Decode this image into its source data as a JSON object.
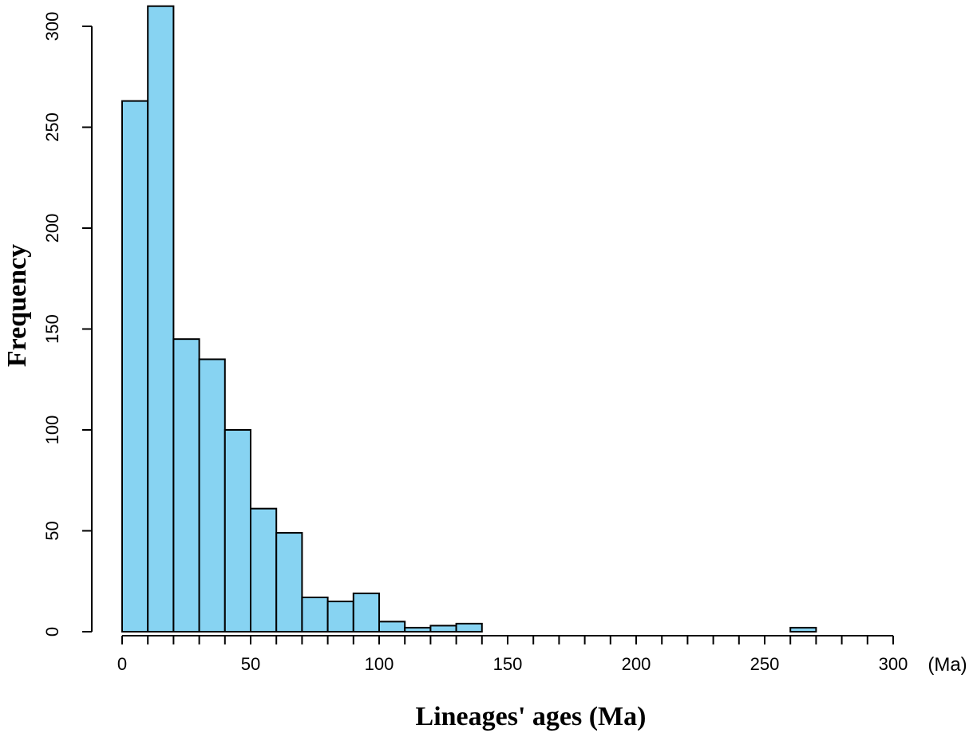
{
  "chart_data": {
    "type": "bar",
    "xlabel": "Lineages' ages (Ma)",
    "ylabel": "Frequency",
    "x_unit_label": "(Ma)",
    "bin_width": 10,
    "bins_start": [
      0,
      10,
      20,
      30,
      40,
      50,
      60,
      70,
      80,
      90,
      100,
      110,
      120,
      130,
      140,
      150,
      160,
      170,
      180,
      190,
      200,
      210,
      220,
      230,
      240,
      250,
      260,
      270,
      280,
      290
    ],
    "values": [
      263,
      310,
      145,
      135,
      100,
      61,
      49,
      17,
      15,
      19,
      5,
      2,
      3,
      4,
      0,
      0,
      0,
      0,
      0,
      0,
      0,
      0,
      0,
      0,
      0,
      0,
      2,
      0,
      0,
      0
    ],
    "xlim": [
      0,
      300
    ],
    "ylim": [
      0,
      310
    ],
    "x_ticks": [
      0,
      50,
      100,
      150,
      200,
      250,
      300
    ],
    "y_ticks": [
      0,
      50,
      100,
      150,
      200,
      250,
      300
    ],
    "bar_color": "#87D3F2",
    "grid": false
  }
}
